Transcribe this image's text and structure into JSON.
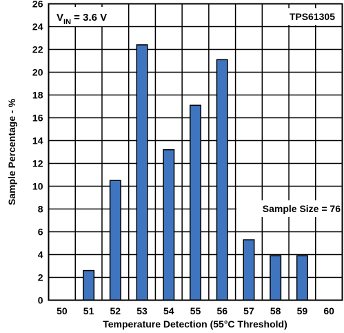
{
  "chart_data": {
    "type": "bar",
    "categories": [
      "50",
      "51",
      "52",
      "53",
      "54",
      "55",
      "56",
      "57",
      "58",
      "59",
      "60"
    ],
    "values": [
      0,
      2.6,
      10.5,
      22.4,
      13.2,
      17.1,
      21.1,
      5.3,
      3.9,
      3.9,
      0
    ],
    "xlabel": "Temperature Detection (55°C Threshold)",
    "ylabel": "Sample Percentage - %",
    "ylim": [
      0,
      26
    ],
    "yticks": [
      0,
      2,
      4,
      6,
      8,
      10,
      12,
      14,
      16,
      18,
      20,
      22,
      24,
      26
    ],
    "grid": true,
    "bar_color": "#3f74bf",
    "annotations": {
      "vin_prefix": "V",
      "vin_subscript": "IN",
      "vin_suffix": " = 3.6 V",
      "part_number": "TPS61305",
      "sample_size": "Sample Size = 76"
    }
  }
}
